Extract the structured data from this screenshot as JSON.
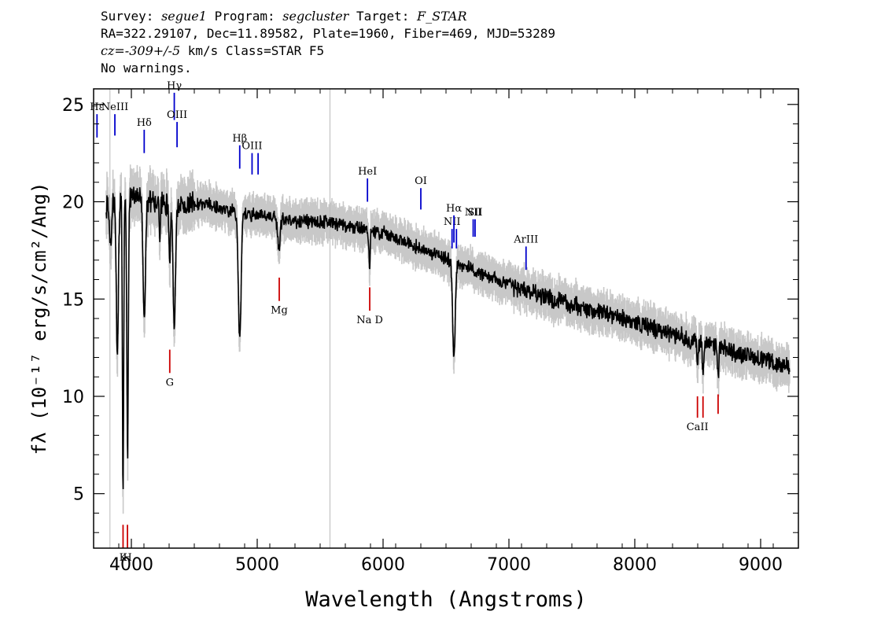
{
  "header": {
    "line1": {
      "survey_label": "Survey: ",
      "survey": "segue1",
      "program_label": " Program: ",
      "program": "segcluster",
      "target_label": " Target: ",
      "target": "F_STAR"
    },
    "line2": "RA=322.29107, Dec=11.89582, Plate=1960, Fiber=469, MJD=53289",
    "line3": {
      "cz_label": "cz=",
      "cz_value": "-309+/-5",
      "rest": " km/s Class=STAR F5"
    },
    "line4": "No warnings."
  },
  "colors": {
    "flux": "#000000",
    "error_band": "#c8c8c8",
    "emission_marker": "#0000cc",
    "absorption_marker": "#cc0000",
    "reference_line": "#bbbbbb"
  },
  "chart_data": {
    "type": "line",
    "xlabel": "Wavelength (Angstroms)",
    "ylabel": "fλ (10⁻¹⁷ erg/s/cm²/Ang)",
    "xlim": [
      3700,
      9300
    ],
    "ylim": [
      2.2,
      25.8
    ],
    "x_ticks": [
      4000,
      5000,
      6000,
      7000,
      8000,
      9000
    ],
    "y_ticks": [
      5,
      10,
      15,
      20,
      25
    ],
    "reference_lines_x": [
      3830,
      5578
    ],
    "continuum": [
      [
        3800,
        19.8
      ],
      [
        4000,
        20.2
      ],
      [
        4300,
        19.8
      ],
      [
        4600,
        19.9
      ],
      [
        4800,
        19.5
      ],
      [
        5000,
        19.3
      ],
      [
        5300,
        19.0
      ],
      [
        5600,
        18.9
      ],
      [
        6000,
        18.4
      ],
      [
        6300,
        17.6
      ],
      [
        6600,
        16.8
      ],
      [
        7000,
        15.7
      ],
      [
        7500,
        14.7
      ],
      [
        8000,
        13.8
      ],
      [
        8500,
        12.8
      ],
      [
        9000,
        11.9
      ],
      [
        9230,
        11.5
      ]
    ],
    "absorption_features": [
      {
        "x": 3835,
        "depth": 2.0,
        "width": 8
      },
      {
        "x": 3889,
        "depth": 8.0,
        "width": 8
      },
      {
        "x": 3934,
        "depth": 15.0,
        "width": 5
      },
      {
        "x": 3970,
        "depth": 13.0,
        "width": 6
      },
      {
        "x": 4102,
        "depth": 6.5,
        "width": 9
      },
      {
        "x": 4227,
        "depth": 1.5,
        "width": 5
      },
      {
        "x": 4304,
        "depth": 3.0,
        "width": 6
      },
      {
        "x": 4341,
        "depth": 6.5,
        "width": 9
      },
      {
        "x": 4861,
        "depth": 6.5,
        "width": 11
      },
      {
        "x": 5173,
        "depth": 1.5,
        "width": 10
      },
      {
        "x": 5890,
        "depth": 1.2,
        "width": 4
      },
      {
        "x": 5896,
        "depth": 1.2,
        "width": 4
      },
      {
        "x": 6563,
        "depth": 5.0,
        "width": 10
      },
      {
        "x": 8498,
        "depth": 1.2,
        "width": 5
      },
      {
        "x": 8542,
        "depth": 1.5,
        "width": 5
      },
      {
        "x": 8662,
        "depth": 1.5,
        "width": 5
      }
    ],
    "emission_lines": [
      {
        "label": "Hε",
        "x": 3727,
        "y_bottom": 23.3,
        "y_top": 24.5
      },
      {
        "label": "NeIII",
        "x": 3869,
        "y_bottom": 23.4,
        "y_top": 24.5
      },
      {
        "label": "Hδ",
        "x": 4102,
        "y_bottom": 22.5,
        "y_top": 23.7
      },
      {
        "label": "Hγ",
        "x": 4341,
        "y_bottom": 24.2,
        "y_top": 25.6
      },
      {
        "label": "OIII",
        "x": 4363,
        "y_bottom": 22.8,
        "y_top": 24.1
      },
      {
        "label": "Hβ",
        "x": 4861,
        "y_bottom": 21.7,
        "y_top": 22.9
      },
      {
        "label": "OIII",
        "x": 4959,
        "y_bottom": 21.4,
        "y_top": 22.5
      },
      {
        "label": "",
        "x": 5007,
        "y_bottom": 21.4,
        "y_top": 22.5
      },
      {
        "label": "HeI",
        "x": 5876,
        "y_bottom": 20.0,
        "y_top": 21.2
      },
      {
        "label": "OI",
        "x": 6300,
        "y_bottom": 19.6,
        "y_top": 20.7
      },
      {
        "label": "NII",
        "x": 6548,
        "y_bottom": 17.6,
        "y_top": 18.6
      },
      {
        "label": "Hα",
        "x": 6563,
        "y_bottom": 17.9,
        "y_top": 19.3
      },
      {
        "label": "",
        "x": 6583,
        "y_bottom": 17.6,
        "y_top": 18.6
      },
      {
        "label": "NII",
        "x": 6716,
        "y_bottom": 18.2,
        "y_top": 19.1
      },
      {
        "label": "SII",
        "x": 6731,
        "y_bottom": 18.2,
        "y_top": 19.1
      },
      {
        "label": "ArIII",
        "x": 7136,
        "y_bottom": 16.5,
        "y_top": 17.7
      }
    ],
    "absorption_lines": [
      {
        "label": "K",
        "x": 3934,
        "y_bottom": 2.2,
        "y_top": 3.4
      },
      {
        "label": "H",
        "x": 3969,
        "y_bottom": 2.2,
        "y_top": 3.4
      },
      {
        "label": "G",
        "x": 4305,
        "y_bottom": 11.2,
        "y_top": 12.4
      },
      {
        "label": "Mg",
        "x": 5175,
        "y_bottom": 14.9,
        "y_top": 16.1
      },
      {
        "label": "Na D",
        "x": 5894,
        "y_bottom": 14.4,
        "y_top": 15.6
      },
      {
        "label": "CaII",
        "x": 8498,
        "y_bottom": 8.9,
        "y_top": 10.0
      },
      {
        "label": "",
        "x": 8542,
        "y_bottom": 8.9,
        "y_top": 10.0
      },
      {
        "label": "",
        "x": 8662,
        "y_bottom": 9.1,
        "y_top": 10.1
      }
    ]
  }
}
